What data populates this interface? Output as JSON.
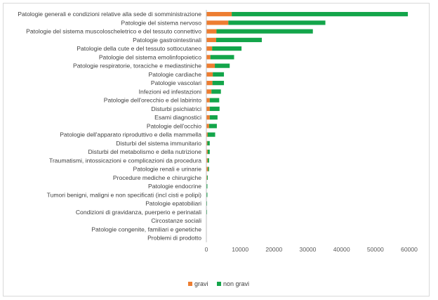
{
  "chart_data": {
    "type": "bar",
    "orientation": "horizontal",
    "stacked": true,
    "title": "",
    "xlabel": "",
    "ylabel": "",
    "xlim": [
      0,
      60000
    ],
    "x_ticks": [
      0,
      10000,
      20000,
      30000,
      40000,
      50000,
      60000
    ],
    "grid": false,
    "legend_position": "bottom",
    "colors": {
      "gravi": "#ed7d31",
      "non_gravi": "#13a54a"
    },
    "categories": [
      "Patologie generali e condizioni relative alla sede di somministrazione",
      "Patologie del sistema nervoso",
      "Patologie del sistema muscoloscheletrico e del tessuto connettivo",
      "Patologie gastrointestinali",
      "Patologie della cute e del tessuto sottocutaneo",
      "Patologie del sistema emolinfopoietico",
      "Patologie respiratorie, toraciche e mediastiniche",
      "Patologie cardiache",
      "Patologie vascolari",
      "Infezioni ed infestazioni",
      "Patologie dell'orecchio e del labirinto",
      "Disturbi psichiatrici",
      "Esami diagnostici",
      "Patologie dell'occhio",
      "Patologie dell'apparato riproduttivo e della mammella",
      "Disturbi del sistema immunitario",
      "Disturbi del metabolismo e della nutrizione",
      "Traumatismi, intossicazioni e complicazioni da procedura",
      "Patologie renali e urinarie",
      "Procedure mediche e chirurgiche",
      "Patologie endocrine",
      "Tumori benigni, maligni e non specificati (incl cisti e polipi)",
      "Patologie epatobiliari",
      "Condizioni di gravidanza, puerperio e perinatali",
      "Circostanze sociali",
      "Patologie congenite, familiari e genetiche",
      "Problemi di prodotto"
    ],
    "series": [
      {
        "name": "gravi",
        "values": [
          7500,
          6500,
          3000,
          2900,
          1700,
          1200,
          2500,
          1900,
          1800,
          1500,
          1000,
          1000,
          1000,
          800,
          400,
          300,
          400,
          400,
          500,
          200,
          100,
          100,
          100,
          100,
          50,
          50,
          20
        ]
      },
      {
        "name": "non gravi",
        "values": [
          52100,
          28700,
          28500,
          13500,
          8700,
          7000,
          4400,
          3300,
          3400,
          2800,
          2800,
          2900,
          2300,
          2300,
          2200,
          700,
          600,
          400,
          300,
          200,
          200,
          200,
          100,
          100,
          50,
          50,
          30
        ]
      }
    ]
  }
}
